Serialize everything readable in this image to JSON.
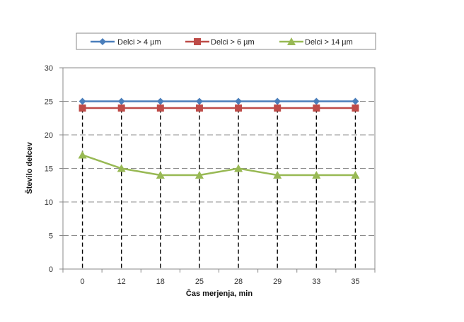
{
  "chart_data": {
    "type": "line",
    "title": "",
    "xlabel": "Čas merjenja, min",
    "ylabel": "Število delcev",
    "categories": [
      "0",
      "12",
      "18",
      "25",
      "28",
      "29",
      "33",
      "35"
    ],
    "ylim": [
      0,
      30
    ],
    "yticks": [
      0,
      5,
      10,
      15,
      20,
      25,
      30
    ],
    "grid": "dashed horizontal and vertical",
    "legend_position": "top",
    "series": [
      {
        "name": "Delci > 4 µm",
        "color": "#4a7ebb",
        "marker": "diamond",
        "values": [
          25,
          25,
          25,
          25,
          25,
          25,
          25,
          25
        ]
      },
      {
        "name": "Delci > 6 µm",
        "color": "#be4b48",
        "marker": "square",
        "values": [
          24,
          24,
          24,
          24,
          24,
          24,
          24,
          24
        ]
      },
      {
        "name": "Delci > 14 µm",
        "color": "#98b954",
        "marker": "triangle",
        "values": [
          17,
          15,
          14,
          14,
          15,
          14,
          14,
          14
        ]
      }
    ]
  }
}
